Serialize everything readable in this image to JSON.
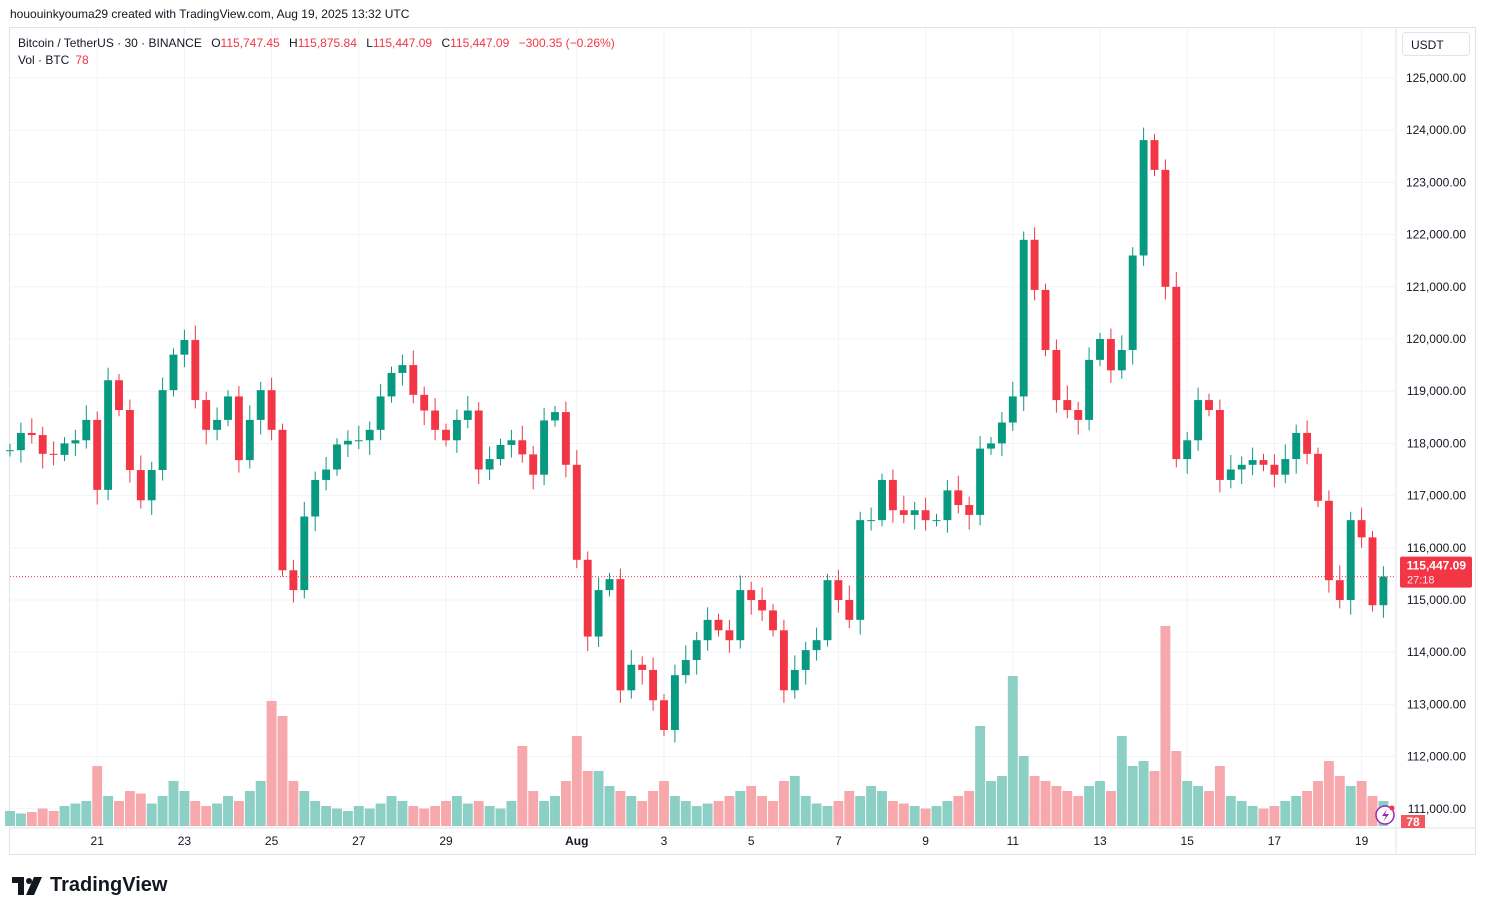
{
  "credit": "hououinkyouma29 created with TradingView.com, Aug 19, 2025 13:32 UTC",
  "legend": {
    "symbol": "Bitcoin / TetherUS · 30 · BINANCE",
    "o_label": "O",
    "o": "115,747.45",
    "h_label": "H",
    "h": "115,875.84",
    "l_label": "L",
    "l": "115,447.09",
    "c_label": "C",
    "c": "115,447.09",
    "change": "−300.35 (−0.26%)",
    "vol_label": "Vol · BTC",
    "vol": "78"
  },
  "currency_button": "USDT",
  "last_price_label": "115,447.09",
  "countdown": "27:18",
  "volume_label": "78",
  "logo_text": "TradingView",
  "colors": {
    "up": "#089981",
    "down": "#f23645",
    "up_vol": "#8ccfc4",
    "down_vol": "#f7a8ac",
    "grid": "#f0f3fa"
  },
  "chart_data": {
    "type": "candlestick",
    "title": "Bitcoin / TetherUS · 30 · BINANCE",
    "interval_note": "approximate closes sampled every 6 hours",
    "start": "2025-07-19T00:00",
    "step_hours": 6,
    "close": [
      117870,
      118200,
      118160,
      117800,
      117780,
      118000,
      118060,
      118450,
      117110,
      119210,
      118640,
      117490,
      116910,
      117490,
      119020,
      119700,
      119980,
      118830,
      118260,
      118450,
      118900,
      117680,
      118450,
      119020,
      118260,
      115570,
      115190,
      116600,
      117300,
      117500,
      117980,
      118050,
      118060,
      118260,
      118900,
      119350,
      119500,
      118930,
      118630,
      118260,
      118060,
      118450,
      118630,
      117500,
      117700,
      117970,
      118060,
      117790,
      117400,
      118440,
      118600,
      117590,
      115770,
      114300,
      115190,
      115400,
      113270,
      113760,
      113660,
      113080,
      112510,
      113560,
      113850,
      114230,
      114620,
      114420,
      114230,
      115190,
      115000,
      114800,
      114420,
      113270,
      113660,
      114040,
      114230,
      115380,
      115000,
      114620,
      116530,
      116530,
      117300,
      116720,
      116630,
      116720,
      116530,
      116530,
      117100,
      116820,
      116630,
      117900,
      118000,
      118400,
      118900,
      121900,
      120940,
      119790,
      118830,
      118640,
      118450,
      119600,
      120000,
      119400,
      119790,
      121600,
      123810,
      123240,
      121000,
      117700,
      118060,
      118830,
      118640,
      117300,
      117500,
      117590,
      117680,
      117590,
      117400,
      117700,
      118200,
      117800,
      116900,
      115380,
      115000,
      116530,
      116200,
      114900,
      115447.09
    ],
    "volume": [
      300,
      250,
      280,
      350,
      300,
      400,
      450,
      500,
      1200,
      600,
      500,
      700,
      650,
      450,
      600,
      900,
      700,
      500,
      400,
      450,
      600,
      500,
      700,
      900,
      2500,
      2200,
      900,
      700,
      500,
      400,
      350,
      300,
      400,
      350,
      450,
      600,
      500,
      400,
      350,
      400,
      500,
      600,
      450,
      500,
      400,
      350,
      500,
      1600,
      700,
      500,
      600,
      900,
      1800,
      1100,
      1100,
      800,
      700,
      600,
      500,
      700,
      900,
      600,
      500,
      400,
      450,
      500,
      600,
      700,
      800,
      600,
      500,
      900,
      1000,
      600,
      450,
      400,
      500,
      700,
      600,
      800,
      700,
      500,
      450,
      400,
      350,
      400,
      500,
      600,
      700,
      2000,
      900,
      1000,
      3000,
      1400,
      1000,
      900,
      800,
      700,
      600,
      800,
      900,
      700,
      1800,
      1200,
      1300,
      1100,
      4000,
      1500,
      900,
      800,
      700,
      1200,
      600,
      500,
      400,
      350,
      400,
      500,
      600,
      700,
      900,
      1300,
      1000,
      800,
      900,
      600,
      500
    ],
    "ylim": [
      111000,
      125000
    ],
    "y_ticks": [
      "125,000.00",
      "124,000.00",
      "123,000.00",
      "122,000.00",
      "121,000.00",
      "120,000.00",
      "119,000.00",
      "118,000.00",
      "117,000.00",
      "116,000.00",
      "115,000.00",
      "114,000.00",
      "113,000.00",
      "112,000.00",
      "111,000.00"
    ],
    "x_ticks": [
      {
        "label": "21",
        "date": "2025-07-21"
      },
      {
        "label": "23",
        "date": "2025-07-23"
      },
      {
        "label": "25",
        "date": "2025-07-25"
      },
      {
        "label": "27",
        "date": "2025-07-27"
      },
      {
        "label": "29",
        "date": "2025-07-29"
      },
      {
        "label": "Aug",
        "date": "2025-08-01"
      },
      {
        "label": "3",
        "date": "2025-08-03"
      },
      {
        "label": "5",
        "date": "2025-08-05"
      },
      {
        "label": "7",
        "date": "2025-08-07"
      },
      {
        "label": "9",
        "date": "2025-08-09"
      },
      {
        "label": "11",
        "date": "2025-08-11"
      },
      {
        "label": "13",
        "date": "2025-08-13"
      },
      {
        "label": "15",
        "date": "2025-08-15"
      },
      {
        "label": "17",
        "date": "2025-08-17"
      },
      {
        "label": "19",
        "date": "2025-08-19"
      }
    ],
    "last_price": 115447.09,
    "grid": true
  }
}
